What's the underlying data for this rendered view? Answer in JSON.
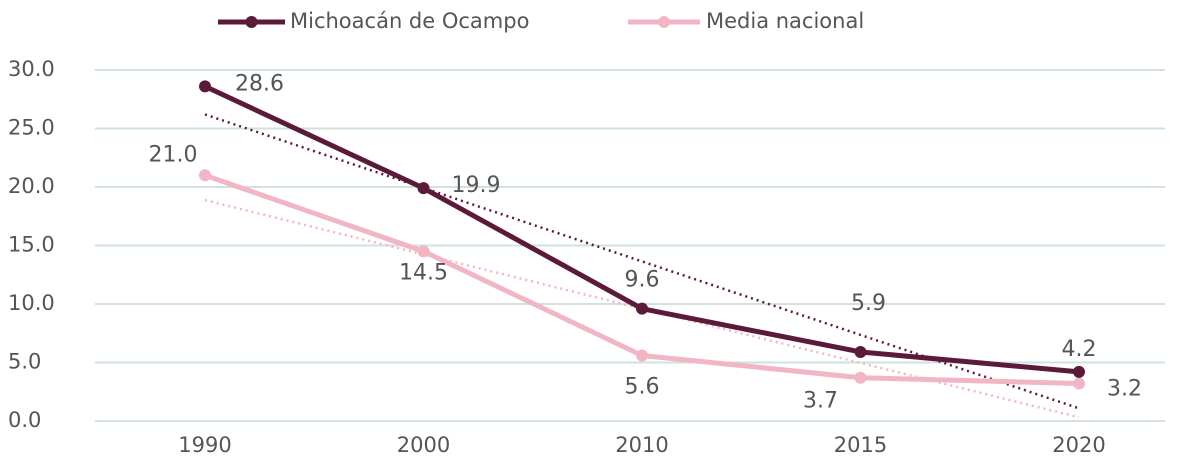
{
  "chart_data": {
    "type": "line",
    "categories": [
      "1990",
      "2000",
      "2010",
      "2015",
      "2020"
    ],
    "series": [
      {
        "name": "Michoacán de Ocampo",
        "color": "#5c1a3a",
        "values": [
          28.6,
          19.9,
          9.6,
          5.9,
          4.2
        ],
        "value_labels": [
          "28.6",
          "19.9",
          "9.6",
          "5.9",
          "4.2"
        ]
      },
      {
        "name": "Media nacional",
        "color": "#f2b5c4",
        "values": [
          21.0,
          14.5,
          5.6,
          3.7,
          3.2
        ],
        "value_labels": [
          "21.0",
          "14.5",
          "5.6",
          "3.7",
          "3.2"
        ]
      }
    ],
    "ylim": [
      0,
      30
    ],
    "yticks": [
      {
        "value": 0,
        "label": "0.0"
      },
      {
        "value": 5,
        "label": "5.0"
      },
      {
        "value": 10,
        "label": "10.0"
      },
      {
        "value": 15,
        "label": "15.0"
      },
      {
        "value": 20,
        "label": "20.0"
      },
      {
        "value": 25,
        "label": "25.0"
      },
      {
        "value": 30,
        "label": "30.0"
      }
    ],
    "grid": true,
    "trendline": true,
    "legend": "top"
  }
}
